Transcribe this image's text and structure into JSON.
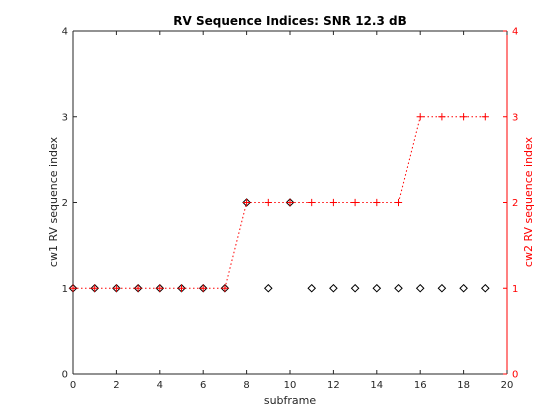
{
  "chart_data": {
    "type": "scatter",
    "title": "RV Sequence Indices: SNR 12.3 dB",
    "xlabel": "subframe",
    "ylabel_left": "cw1  RV sequence index",
    "ylabel_right": "cw2  RV sequence index",
    "xlim": [
      0,
      20
    ],
    "ylim_left": [
      0,
      4
    ],
    "ylim_right": [
      0,
      4
    ],
    "x_ticks": [
      "0",
      "2",
      "4",
      "6",
      "8",
      "10",
      "12",
      "14",
      "16",
      "18",
      "20"
    ],
    "y_ticks_left": [
      "0",
      "1",
      "2",
      "3",
      "4"
    ],
    "y_ticks_right": [
      "0",
      "1",
      "2",
      "3",
      "4"
    ],
    "grid": false,
    "colors": {
      "cw1": "#000000",
      "cw2": "#ff0000",
      "axes": "#262626"
    },
    "series": [
      {
        "marker": "diamond",
        "line": "none",
        "color": "#000000",
        "axis": "left",
        "x": [
          0,
          1,
          2,
          3,
          4,
          5,
          6,
          7,
          8,
          9,
          10,
          11,
          12,
          13,
          14,
          15,
          16,
          17,
          18,
          19
        ],
        "y": [
          1,
          1,
          1,
          1,
          1,
          1,
          1,
          1,
          2,
          1,
          2,
          1,
          1,
          1,
          1,
          1,
          1,
          1,
          1,
          1
        ]
      },
      {
        "marker": "plus",
        "line": "dotted",
        "color": "#ff0000",
        "axis": "right",
        "x": [
          0,
          1,
          2,
          3,
          4,
          5,
          6,
          7,
          8,
          9,
          10,
          11,
          12,
          13,
          14,
          15,
          16,
          17,
          18,
          19
        ],
        "y": [
          1,
          1,
          1,
          1,
          1,
          1,
          1,
          1,
          2,
          2,
          2,
          2,
          2,
          2,
          2,
          2,
          3,
          3,
          3,
          3
        ]
      }
    ]
  }
}
